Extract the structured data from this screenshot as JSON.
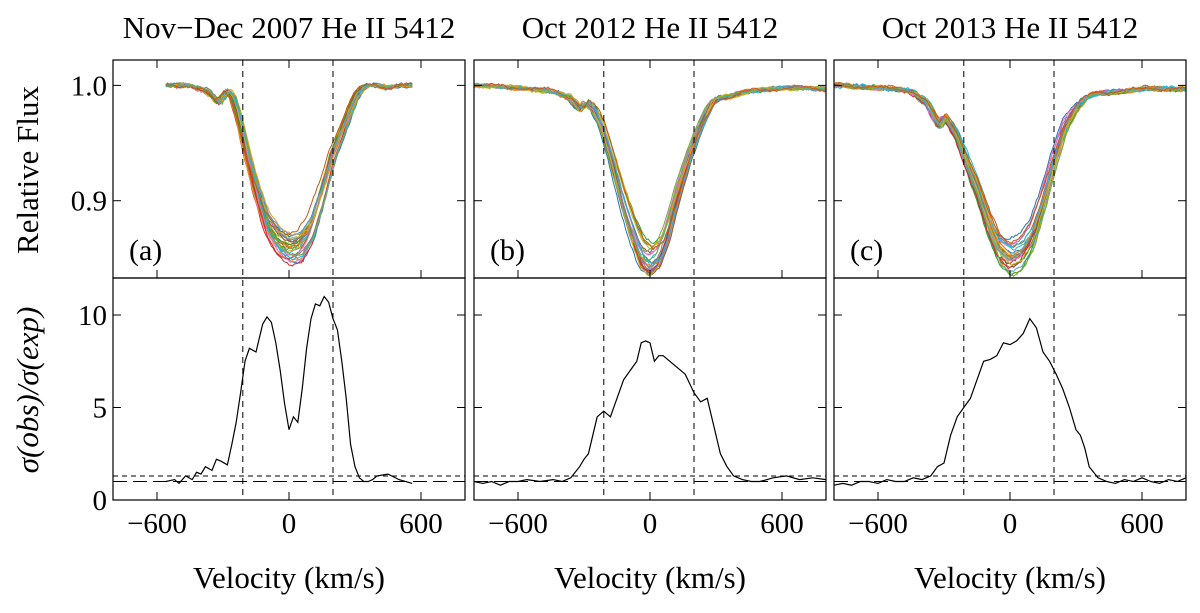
{
  "figure": {
    "ylabel_top": "Relative Flux",
    "ylabel_bottom": "σ(obs)/σ(exp)"
  },
  "chart_data": [
    {
      "type": "line",
      "panel_label": "(a)",
      "title": "Nov−Dec 2007 He II 5412",
      "xlabel": "Velocity (km/s)",
      "xlim": [
        -800,
        800
      ],
      "xticks": [
        -600,
        0,
        600
      ],
      "xtick_labels": [
        "−600",
        "0",
        "600"
      ],
      "vlines": [
        -210,
        200
      ],
      "top": {
        "ylabel": "Relative Flux",
        "ylim": [
          0.833,
          1.022
        ],
        "yticks": [
          0.9,
          1.0
        ],
        "ytick_labels": [
          "0.9",
          "1.0"
        ],
        "profile_x": [
          -560,
          -450,
          -370,
          -320,
          -280,
          -255,
          -225,
          -190,
          -150,
          -100,
          -50,
          0,
          50,
          100,
          150,
          200,
          250,
          300,
          330,
          360,
          400,
          450,
          500,
          560
        ],
        "profile_y": [
          1.0,
          1.0,
          0.995,
          0.985,
          0.995,
          0.99,
          0.97,
          0.94,
          0.91,
          0.88,
          0.865,
          0.858,
          0.86,
          0.875,
          0.905,
          0.94,
          0.965,
          0.99,
          0.997,
          1.0,
          1.0,
          0.998,
          1.0,
          1.0
        ],
        "n_spectra": 28
      },
      "bottom": {
        "ylabel": "σ(obs)/σ(exp)",
        "ylim": [
          0,
          12
        ],
        "yticks": [
          0,
          5,
          10
        ],
        "ytick_labels": [
          "0",
          "5",
          "10"
        ],
        "hlines": [
          1.0,
          1.3
        ],
        "x": [
          -560,
          -520,
          -500,
          -470,
          -440,
          -420,
          -400,
          -380,
          -350,
          -330,
          -310,
          -280,
          -260,
          -240,
          -220,
          -200,
          -180,
          -150,
          -120,
          -100,
          -80,
          -60,
          -40,
          -20,
          0,
          20,
          40,
          60,
          80,
          100,
          120,
          140,
          160,
          180,
          200,
          220,
          240,
          260,
          280,
          300,
          320,
          340,
          360,
          380,
          400,
          450,
          500,
          560
        ],
        "y": [
          1.0,
          1.1,
          0.9,
          1.3,
          1.1,
          1.5,
          1.4,
          1.8,
          1.6,
          2.2,
          2.1,
          1.9,
          3.0,
          4.2,
          5.8,
          7.5,
          8.2,
          8.0,
          9.5,
          9.9,
          9.6,
          8.5,
          7.0,
          5.2,
          3.8,
          4.5,
          4.2,
          6.0,
          8.2,
          9.8,
          10.6,
          10.5,
          11.0,
          10.7,
          9.8,
          9.2,
          7.5,
          5.5,
          3.0,
          1.8,
          1.2,
          1.0,
          1.0,
          1.1,
          1.3,
          1.4,
          1.1,
          0.9
        ]
      }
    },
    {
      "type": "line",
      "panel_label": "(b)",
      "title": "Oct 2012 He II 5412",
      "xlabel": "Velocity (km/s)",
      "xlim": [
        -800,
        800
      ],
      "xticks": [
        -600,
        0,
        600
      ],
      "xtick_labels": [
        "−600",
        "0",
        "600"
      ],
      "vlines": [
        -210,
        200
      ],
      "top": {
        "ylabel": "Relative Flux",
        "ylim": [
          0.833,
          1.022
        ],
        "yticks": [
          0.9,
          1.0
        ],
        "ytick_labels": [
          "0.9",
          "1.0"
        ],
        "profile_x": [
          -800,
          -600,
          -450,
          -370,
          -320,
          -290,
          -260,
          -220,
          -180,
          -130,
          -80,
          -40,
          0,
          40,
          80,
          130,
          180,
          230,
          280,
          320,
          350,
          400,
          500,
          600,
          800
        ],
        "profile_y": [
          1.0,
          0.998,
          0.995,
          0.99,
          0.98,
          0.985,
          0.98,
          0.965,
          0.94,
          0.905,
          0.875,
          0.855,
          0.848,
          0.855,
          0.875,
          0.91,
          0.94,
          0.965,
          0.985,
          0.99,
          0.99,
          0.993,
          0.996,
          0.998,
          0.997
        ],
        "n_spectra": 28
      },
      "bottom": {
        "ylabel": "σ(obs)/σ(exp)",
        "ylim": [
          0,
          12
        ],
        "yticks": [
          0,
          5,
          10
        ],
        "ytick_labels": [
          "0",
          "5",
          "10"
        ],
        "hlines": [
          1.0,
          1.3
        ],
        "x": [
          -800,
          -760,
          -720,
          -680,
          -640,
          -600,
          -560,
          -500,
          -440,
          -400,
          -360,
          -320,
          -300,
          -280,
          -260,
          -240,
          -210,
          -180,
          -150,
          -120,
          -90,
          -60,
          -40,
          -20,
          0,
          20,
          40,
          60,
          90,
          120,
          160,
          200,
          230,
          260,
          290,
          320,
          350,
          380,
          420,
          460,
          500,
          560,
          620,
          680,
          740,
          800
        ],
        "y": [
          1.0,
          0.9,
          1.0,
          0.8,
          1.0,
          1.0,
          1.1,
          1.0,
          1.1,
          1.0,
          1.2,
          1.8,
          2.2,
          2.5,
          3.5,
          4.5,
          4.8,
          4.5,
          5.5,
          6.5,
          7.0,
          7.5,
          8.5,
          8.6,
          8.5,
          7.5,
          7.8,
          7.8,
          7.5,
          7.2,
          6.8,
          5.8,
          5.3,
          5.5,
          4.0,
          2.5,
          1.8,
          1.3,
          1.1,
          1.0,
          1.0,
          1.2,
          1.3,
          1.1,
          1.2,
          1.1
        ]
      }
    },
    {
      "type": "line",
      "panel_label": "(c)",
      "title": "Oct 2013 He II 5412",
      "xlabel": "Velocity (km/s)",
      "xlim": [
        -800,
        800
      ],
      "xticks": [
        -600,
        0,
        600
      ],
      "xtick_labels": [
        "−600",
        "0",
        "600"
      ],
      "vlines": [
        -210,
        200
      ],
      "top": {
        "ylabel": "Relative Flux",
        "ylim": [
          0.833,
          1.022
        ],
        "yticks": [
          0.9,
          1.0
        ],
        "ytick_labels": [
          "0.9",
          "1.0"
        ],
        "profile_x": [
          -800,
          -600,
          -450,
          -380,
          -340,
          -320,
          -300,
          -270,
          -240,
          -200,
          -150,
          -100,
          -50,
          0,
          50,
          100,
          150,
          200,
          250,
          300,
          350,
          400,
          500,
          600,
          800
        ],
        "profile_y": [
          1.0,
          0.998,
          0.995,
          0.985,
          0.97,
          0.965,
          0.972,
          0.965,
          0.955,
          0.935,
          0.91,
          0.88,
          0.858,
          0.85,
          0.855,
          0.87,
          0.9,
          0.935,
          0.965,
          0.98,
          0.99,
          0.993,
          0.995,
          0.997,
          0.997
        ],
        "n_spectra": 28
      },
      "bottom": {
        "ylabel": "σ(obs)/σ(exp)",
        "ylim": [
          0,
          12
        ],
        "yticks": [
          0,
          5,
          10
        ],
        "ytick_labels": [
          "0",
          "5",
          "10"
        ],
        "hlines": [
          1.0,
          1.3
        ],
        "x": [
          -800,
          -760,
          -720,
          -680,
          -640,
          -600,
          -560,
          -520,
          -480,
          -440,
          -400,
          -360,
          -330,
          -300,
          -270,
          -240,
          -210,
          -180,
          -150,
          -120,
          -90,
          -60,
          -30,
          0,
          30,
          60,
          90,
          120,
          150,
          180,
          210,
          240,
          270,
          300,
          320,
          340,
          360,
          400,
          440,
          480,
          520,
          560,
          600,
          640,
          680,
          720,
          760,
          800
        ],
        "y": [
          0.8,
          0.9,
          0.8,
          1.0,
          1.0,
          0.9,
          1.1,
          1.0,
          1.0,
          1.2,
          1.1,
          1.3,
          1.8,
          2.0,
          3.5,
          4.5,
          5.0,
          5.5,
          6.5,
          7.5,
          7.6,
          7.8,
          8.5,
          8.4,
          8.6,
          9.0,
          9.8,
          9.3,
          8.0,
          7.5,
          6.8,
          6.0,
          5.0,
          3.8,
          3.5,
          2.8,
          1.8,
          1.2,
          1.0,
          0.9,
          1.1,
          1.0,
          1.2,
          1.0,
          0.9,
          1.1,
          1.0,
          1.2
        ]
      }
    }
  ]
}
